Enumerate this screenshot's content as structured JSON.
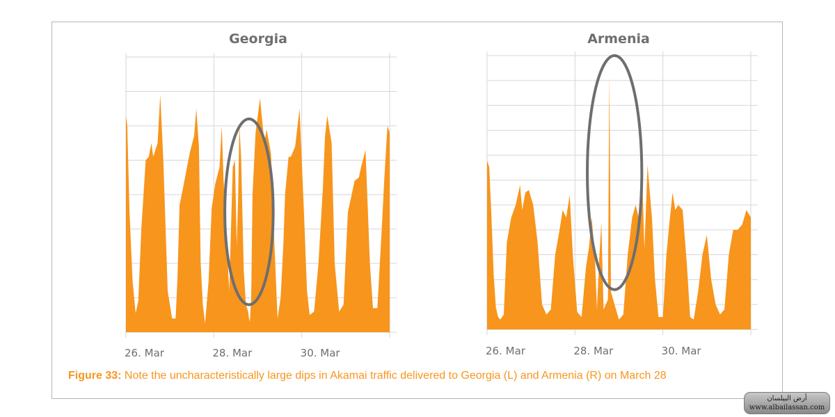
{
  "caption": {
    "label": "Figure 33:",
    "text": "Note the uncharacteristically large dips in Akamai traffic delivered to Georgia (L) and Armenia (R) on March 28",
    "color": "#f7951d"
  },
  "watermark": {
    "line1": "أرض البيلسان",
    "line2": "www.albailassan.com"
  },
  "colors": {
    "area": "#f7951d",
    "highlight": "#6d6e70",
    "grid": "#d6d6d6",
    "frame": "#b4b4b4",
    "text": "#6d6e70"
  },
  "chart_data": [
    {
      "type": "area",
      "title": "Georgia",
      "xlabel": "",
      "ylabel": "",
      "x_ticks": [
        {
          "x": 0,
          "label": "26. Mar"
        },
        {
          "x": 2,
          "label": "28. Mar"
        },
        {
          "x": 4,
          "label": "30. Mar"
        }
      ],
      "xlim": [
        0,
        6
      ],
      "ylim": [
        0,
        8
      ],
      "grid": true,
      "x": [
        0,
        0.03,
        0.08,
        0.15,
        0.22,
        0.28,
        0.35,
        0.45,
        0.52,
        0.58,
        0.62,
        0.72,
        0.78,
        0.85,
        0.95,
        1.05,
        1.13,
        1.17,
        1.22,
        1.3,
        1.45,
        1.55,
        1.6,
        1.66,
        1.7,
        1.75,
        1.8,
        1.88,
        1.95,
        2.03,
        2.13,
        2.18,
        2.22,
        2.35,
        2.43,
        2.48,
        2.52,
        2.55,
        2.58,
        2.62,
        2.68,
        2.73,
        2.78,
        2.8,
        2.82,
        2.85,
        2.88,
        2.95,
        3.05,
        3.15,
        3.2,
        3.3,
        3.38,
        3.45,
        3.52,
        3.58,
        3.62,
        3.7,
        3.75,
        3.85,
        3.95,
        4.05,
        4.12,
        4.18,
        4.28,
        4.38,
        4.48,
        4.53,
        4.58,
        4.68,
        4.75,
        4.85,
        4.95,
        5.05,
        5.12,
        5.2,
        5.3,
        5.35,
        5.45,
        5.55,
        5.62,
        5.72,
        5.82,
        5.88,
        5.95,
        6
      ],
      "y": [
        6.3,
        6.0,
        3.5,
        1.5,
        0.55,
        0.9,
        3.0,
        5.0,
        5.1,
        5.5,
        5.1,
        5.5,
        6.9,
        5.0,
        1.2,
        0.4,
        0.4,
        1.5,
        3.7,
        4.2,
        5.2,
        5.7,
        6.5,
        5.4,
        2.0,
        0.8,
        0.25,
        1.5,
        3.6,
        4.3,
        4.8,
        6.0,
        4.5,
        1.2,
        4.8,
        5.0,
        2.5,
        3.8,
        6.0,
        5.1,
        1.8,
        0.8,
        0.6,
        0.4,
        0.3,
        1.0,
        4.0,
        5.8,
        6.8,
        5.5,
        5.9,
        5.2,
        2.5,
        0.4,
        1.0,
        2.5,
        4.0,
        5.1,
        5.1,
        5.4,
        6.5,
        3.5,
        1.2,
        0.5,
        0.6,
        2.0,
        4.2,
        5.7,
        6.3,
        5.5,
        2.0,
        0.6,
        0.8,
        3.5,
        3.9,
        4.4,
        4.5,
        4.8,
        5.3,
        2.0,
        0.7,
        0.7,
        3.0,
        4.5,
        6.0,
        5.8
      ],
      "annotation": {
        "shape": "ellipse",
        "cx": 2.8,
        "cy": 3.5,
        "rx": 0.55,
        "ry": 2.7
      }
    },
    {
      "type": "area",
      "title": "Armenia",
      "xlabel": "",
      "ylabel": "",
      "x_ticks": [
        {
          "x": 0,
          "label": "26. Mar"
        },
        {
          "x": 2,
          "label": "28. Mar"
        },
        {
          "x": 4,
          "label": "30. Mar"
        }
      ],
      "xlim": [
        0,
        6
      ],
      "ylim": [
        0,
        11
      ],
      "grid": true,
      "x": [
        0,
        0.05,
        0.1,
        0.15,
        0.2,
        0.25,
        0.3,
        0.38,
        0.45,
        0.55,
        0.65,
        0.75,
        0.8,
        0.87,
        0.95,
        1.05,
        1.15,
        1.25,
        1.35,
        1.45,
        1.55,
        1.65,
        1.72,
        1.8,
        1.88,
        1.95,
        2.05,
        2.15,
        2.25,
        2.32,
        2.38,
        2.45,
        2.5,
        2.55,
        2.6,
        2.65,
        2.7,
        2.75,
        2.78,
        2.82,
        2.9,
        3.0,
        3.1,
        3.2,
        3.3,
        3.38,
        3.45,
        3.52,
        3.58,
        3.65,
        3.75,
        3.82,
        3.9,
        4.0,
        4.08,
        4.15,
        4.22,
        4.28,
        4.35,
        4.45,
        4.55,
        4.62,
        4.7,
        4.8,
        4.9,
        5.0,
        5.1,
        5.2,
        5.3,
        5.4,
        5.5,
        5.6,
        5.7,
        5.8,
        5.9,
        6
      ],
      "y": [
        6.8,
        6.5,
        4.5,
        2.2,
        0.9,
        0.5,
        0.4,
        0.6,
        3.5,
        4.5,
        5.0,
        5.8,
        4.8,
        5.5,
        5.6,
        5.0,
        3.5,
        1.0,
        0.6,
        0.8,
        3.0,
        4.0,
        4.8,
        4.5,
        5.4,
        3.0,
        0.7,
        0.5,
        2.5,
        3.3,
        4.5,
        3.0,
        0.8,
        2.8,
        4.3,
        0.8,
        1.0,
        1.2,
        10.2,
        1.5,
        1.0,
        0.4,
        0.6,
        3.0,
        4.5,
        5.0,
        4.5,
        6.8,
        3.2,
        6.6,
        4.5,
        2.0,
        0.5,
        0.5,
        3.0,
        4.3,
        5.5,
        4.8,
        5.0,
        4.8,
        2.5,
        0.5,
        0.4,
        1.5,
        3.0,
        3.8,
        2.0,
        1.0,
        0.6,
        0.8,
        3.0,
        4.0,
        4.0,
        4.2,
        4.8,
        4.5
      ],
      "annotation": {
        "shape": "ellipse",
        "cx": 2.9,
        "cy": 6.3,
        "rx": 0.62,
        "ry": 4.7
      }
    }
  ]
}
